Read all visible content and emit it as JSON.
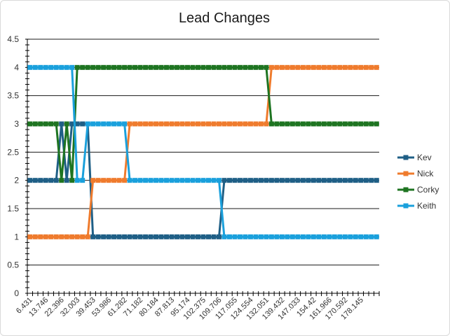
{
  "chart_data": {
    "type": "line",
    "title": "Lead Changes",
    "xlabel": "",
    "ylabel": "",
    "ylim": [
      0,
      4.5
    ],
    "yticks": [
      "0",
      "0.5",
      "1",
      "1.5",
      "2",
      "2.5",
      "3",
      "3.5",
      "4",
      "4.5"
    ],
    "ytick_values": [
      0,
      0.5,
      1,
      1.5,
      2,
      2.5,
      3,
      3.5,
      4,
      4.5
    ],
    "x_tick_labels": [
      "6.431",
      "13.746",
      "22.396",
      "32.003",
      "39.453",
      "53.986",
      "61.282",
      "71.182",
      "80.184",
      "87.813",
      "95.174",
      "102.375",
      "109.706",
      "117.055",
      "124.554",
      "132.051",
      "139.432",
      "147.033",
      "154.42",
      "161.966",
      "170.592",
      "178.145"
    ],
    "x_tick_every": 3,
    "n_categories": 67,
    "grid": "horizontal",
    "legend_position": "right",
    "series": [
      {
        "name": "Kev",
        "color": "#1f5f86",
        "values": [
          2,
          2,
          2,
          2,
          2,
          2,
          3,
          2,
          3,
          3,
          3,
          3,
          1,
          1,
          1,
          1,
          1,
          1,
          1,
          1,
          1,
          1,
          1,
          1,
          1,
          1,
          1,
          1,
          1,
          1,
          1,
          1,
          1,
          1,
          1,
          1,
          1,
          2,
          2,
          2,
          2,
          2,
          2,
          2,
          2,
          2,
          2,
          2,
          2,
          2,
          2,
          2,
          2,
          2,
          2,
          2,
          2,
          2,
          2,
          2,
          2,
          2,
          2,
          2,
          2,
          2,
          2
        ]
      },
      {
        "name": "Nick",
        "color": "#ef7b2d",
        "values": [
          1,
          1,
          1,
          1,
          1,
          1,
          1,
          1,
          1,
          1,
          1,
          1,
          2,
          2,
          2,
          2,
          2,
          2,
          2,
          3,
          3,
          3,
          3,
          3,
          3,
          3,
          3,
          3,
          3,
          3,
          3,
          3,
          3,
          3,
          3,
          3,
          3,
          3,
          3,
          3,
          3,
          3,
          3,
          3,
          3,
          3,
          4,
          4,
          4,
          4,
          4,
          4,
          4,
          4,
          4,
          4,
          4,
          4,
          4,
          4,
          4,
          4,
          4,
          4,
          4,
          4,
          4
        ]
      },
      {
        "name": "Corky",
        "color": "#1e7421",
        "values": [
          3,
          3,
          3,
          3,
          3,
          3,
          2,
          3,
          2,
          4,
          4,
          4,
          4,
          4,
          4,
          4,
          4,
          4,
          4,
          4,
          4,
          4,
          4,
          4,
          4,
          4,
          4,
          4,
          4,
          4,
          4,
          4,
          4,
          4,
          4,
          4,
          4,
          4,
          4,
          4,
          4,
          4,
          4,
          4,
          4,
          4,
          3,
          3,
          3,
          3,
          3,
          3,
          3,
          3,
          3,
          3,
          3,
          3,
          3,
          3,
          3,
          3,
          3,
          3,
          3,
          3,
          3
        ]
      },
      {
        "name": "Keith",
        "color": "#1aa0dc",
        "values": [
          4,
          4,
          4,
          4,
          4,
          4,
          4,
          4,
          4,
          2,
          2,
          3,
          3,
          3,
          3,
          3,
          3,
          3,
          3,
          2,
          2,
          2,
          2,
          2,
          2,
          2,
          2,
          2,
          2,
          2,
          2,
          2,
          2,
          2,
          2,
          2,
          2,
          1,
          1,
          1,
          1,
          1,
          1,
          1,
          1,
          1,
          1,
          1,
          1,
          1,
          1,
          1,
          1,
          1,
          1,
          1,
          1,
          1,
          1,
          1,
          1,
          1,
          1,
          1,
          1,
          1,
          1
        ]
      }
    ]
  }
}
